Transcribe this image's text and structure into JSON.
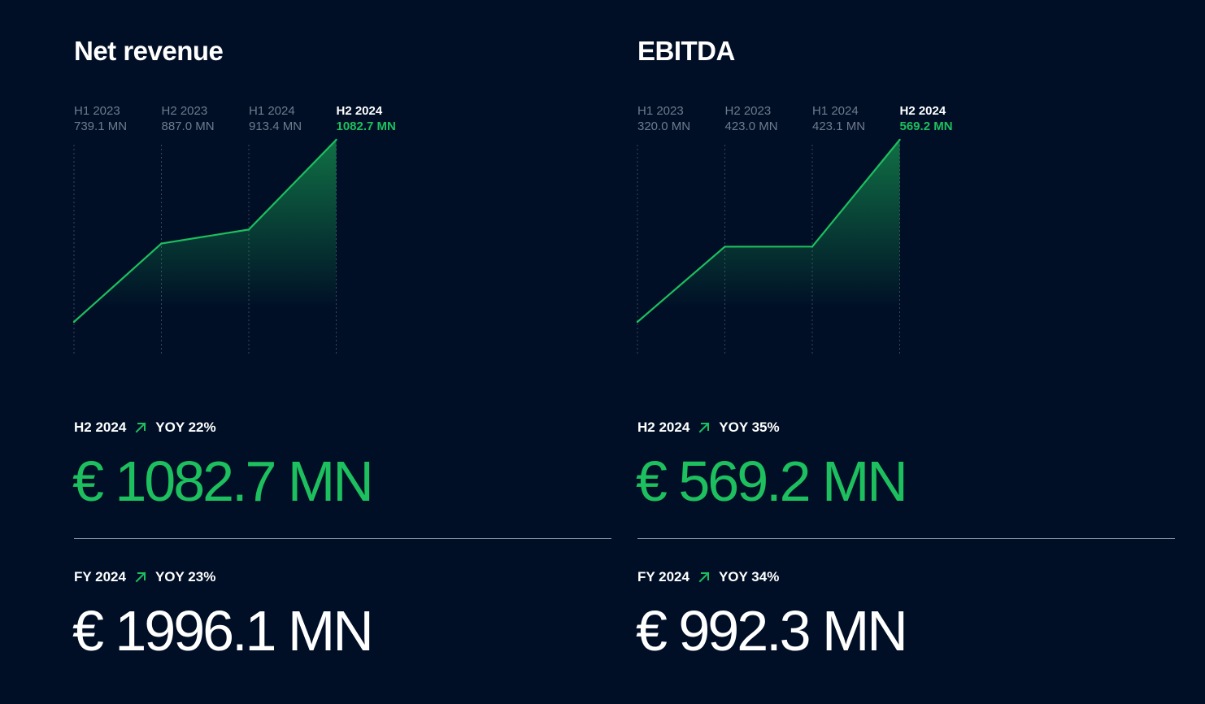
{
  "colors": {
    "background": "#000F26",
    "accent_green": "#1DBF5E",
    "muted_text": "#6F7B8D",
    "divider": "#8A93A3"
  },
  "panels": [
    {
      "title": "Net revenue",
      "half_year": {
        "period": "H2 2024",
        "yoy": "YOY 22%",
        "value": "€ 1082.7 MN"
      },
      "full_year": {
        "period": "FY 2024",
        "yoy": "YOY 23%",
        "value": "€ 1996.1 MN"
      }
    },
    {
      "title": "EBITDA",
      "half_year": {
        "period": "H2 2024",
        "yoy": "YOY 35%",
        "value": "€ 569.2 MN"
      },
      "full_year": {
        "period": "FY 2024",
        "yoy": "YOY 34%",
        "value": "€ 992.3 MN"
      }
    }
  ],
  "chart_data": [
    {
      "type": "area",
      "title": "Net revenue",
      "categories": [
        "H1 2023",
        "H2 2023",
        "H1 2024",
        "H2 2024"
      ],
      "value_labels": [
        "739.1 MN",
        "887.0 MN",
        "913.4 MN",
        "1082.7 MN"
      ],
      "values": [
        739.1,
        887.0,
        913.4,
        1082.7
      ],
      "ylim": [
        739.1,
        1082.7
      ],
      "highlight_index": 3,
      "grid": "dotted vertical lines at each category",
      "line_color": "#1DBF5E"
    },
    {
      "type": "area",
      "title": "EBITDA",
      "categories": [
        "H1 2023",
        "H2 2023",
        "H1 2024",
        "H2 2024"
      ],
      "value_labels": [
        "320.0 MN",
        "423.0 MN",
        "423.1 MN",
        "569.2 MN"
      ],
      "values": [
        320.0,
        423.0,
        423.1,
        569.2
      ],
      "ylim": [
        320.0,
        569.2
      ],
      "highlight_index": 3,
      "grid": "dotted vertical lines at each category",
      "line_color": "#1DBF5E"
    }
  ]
}
